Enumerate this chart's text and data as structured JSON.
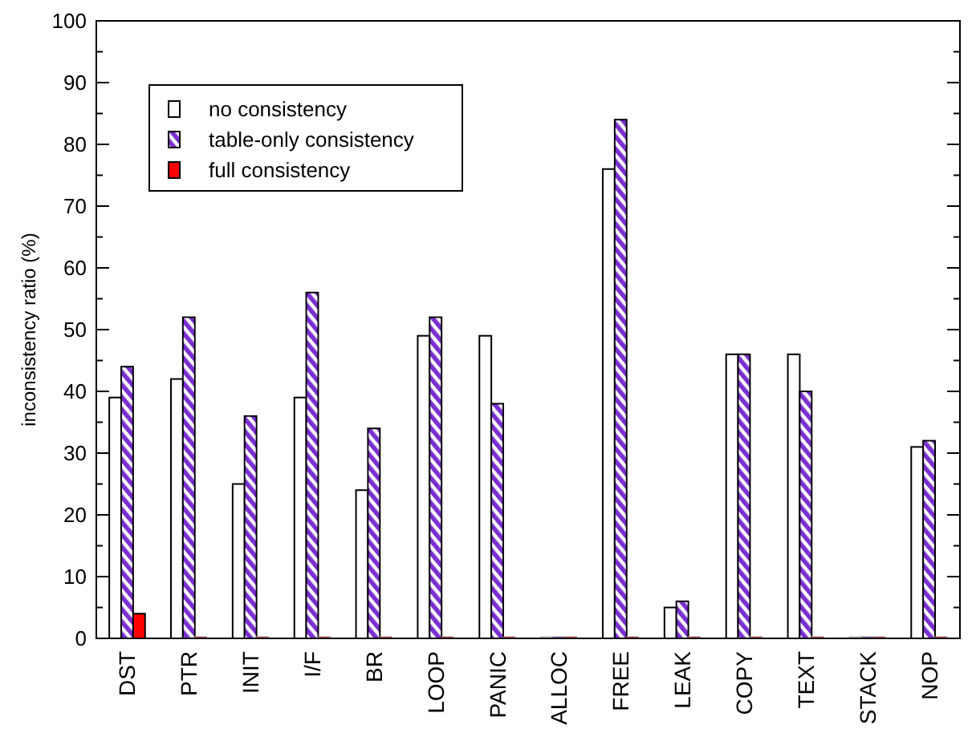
{
  "chart_data": {
    "type": "bar",
    "ylabel": "inconsistency ratio (%)",
    "categories": [
      "DST",
      "PTR",
      "INIT",
      "I/F",
      "BR",
      "LOOP",
      "PANIC",
      "ALLOC",
      "FREE",
      "LEAK",
      "COPY",
      "TEXT",
      "STACK",
      "NOP"
    ],
    "series": [
      {
        "name": "no consistency",
        "color": "#ffffff",
        "values": [
          39,
          42,
          25,
          39,
          24,
          49,
          49,
          0,
          76,
          5,
          46,
          46,
          0,
          31
        ]
      },
      {
        "name": "table-only consistency",
        "color": "#7b2fd0",
        "values": [
          44,
          52,
          36,
          56,
          34,
          52,
          38,
          0,
          84,
          6,
          46,
          40,
          0,
          32
        ]
      },
      {
        "name": "full consistency",
        "color": "#ff0000",
        "values": [
          4,
          0,
          0,
          0,
          0,
          0,
          0,
          0,
          0,
          0,
          0,
          0,
          0,
          0
        ]
      }
    ],
    "ylim": [
      0,
      100
    ],
    "yticks": [
      0,
      {
        "value": 5,
        "label": null
      },
      10,
      {
        "value": 15,
        "label": null
      },
      20,
      {
        "value": 25,
        "label": null
      },
      30,
      {
        "value": 35,
        "label": null
      },
      40,
      {
        "value": 45,
        "label": null
      },
      50,
      {
        "value": 55,
        "label": null
      },
      60,
      {
        "value": 65,
        "label": null
      },
      70,
      {
        "value": 75,
        "label": null
      },
      80,
      {
        "value": 85,
        "label": null
      },
      90,
      {
        "value": 95,
        "label": null
      },
      100
    ],
    "grid": false,
    "legend": "top left"
  }
}
